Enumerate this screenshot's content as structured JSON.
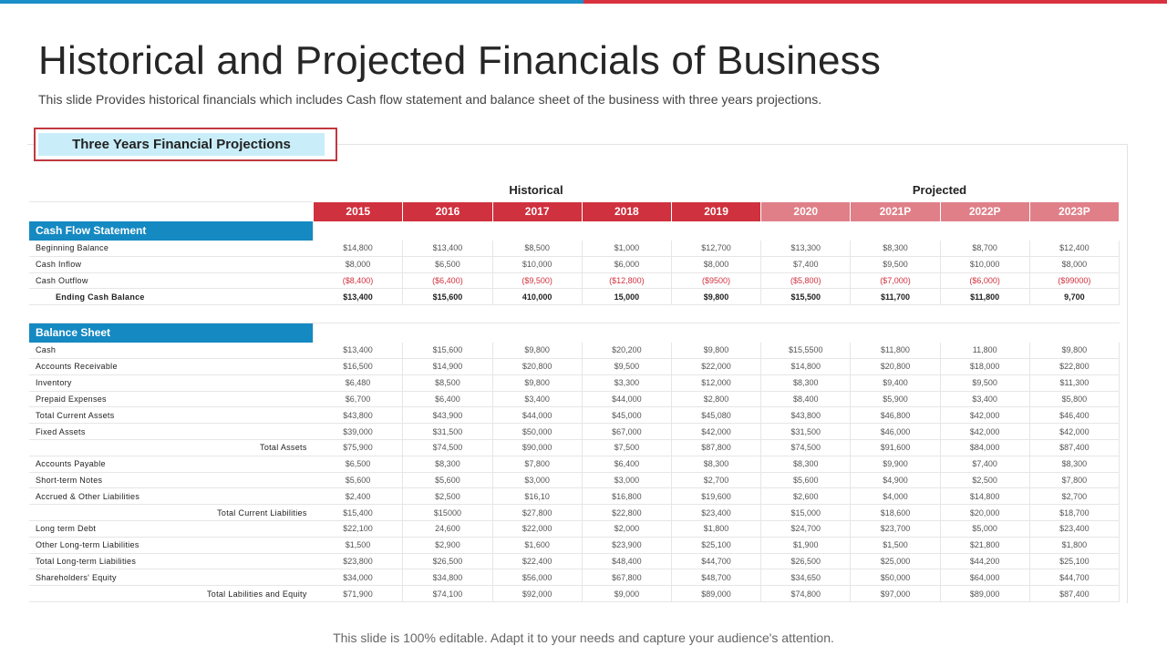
{
  "title": "Historical and Projected Financials of Business",
  "subtitle": "This slide Provides historical financials which includes Cash flow statement and balance sheet of the business with three years projections.",
  "section_tab": "Three Years Financial Projections",
  "groups": {
    "historical": "Historical",
    "projected": "Projected"
  },
  "years": [
    "2015",
    "2016",
    "2017",
    "2018",
    "2019",
    "2020",
    "2021P",
    "2022P",
    "2023P"
  ],
  "cash_flow": {
    "heading": "Cash Flow Statement",
    "rows": [
      {
        "label": "Beginning Balance",
        "values": [
          "$14,800",
          "$13,400",
          "$8,500",
          "$1,000",
          "$12,700",
          "$13,300",
          "$8,300",
          "$8,700",
          "$12,400"
        ]
      },
      {
        "label": "Cash Inflow",
        "values": [
          "$8,000",
          "$6,500",
          "$10,000",
          "$6,000",
          "$8,000",
          "$7,400",
          "$9,500",
          "$10,000",
          "$8,000"
        ]
      },
      {
        "label": "Cash Outflow",
        "values": [
          "($8,400)",
          "($6,400)",
          "($9,500)",
          "($12,800)",
          "($9500)",
          "($5,800)",
          "($7,000)",
          "($6,000)",
          "($99000)"
        ]
      },
      {
        "label": "Ending Cash Balance",
        "values": [
          "$13,400",
          "$15,600",
          "410,000",
          "15,000",
          "$9,800",
          "$15,500",
          "$11,700",
          "$11,800",
          "9,700"
        ]
      }
    ]
  },
  "balance_sheet": {
    "heading": "Balance Sheet",
    "rows": [
      {
        "label": "Cash",
        "values": [
          "$13,400",
          "$15,600",
          "$9,800",
          "$20,200",
          "$9,800",
          "$15,5500",
          "$11,800",
          "11,800",
          "$9,800"
        ]
      },
      {
        "label": "Accounts Receivable",
        "values": [
          "$16,500",
          "$14,900",
          "$20,800",
          "$9,500",
          "$22,000",
          "$14,800",
          "$20,800",
          "$18,000",
          "$22,800"
        ]
      },
      {
        "label": "Inventory",
        "values": [
          "$6,480",
          "$8,500",
          "$9,800",
          "$3,300",
          "$12,000",
          "$8,300",
          "$9,400",
          "$9,500",
          "$11,300"
        ]
      },
      {
        "label": "Prepaid Expenses",
        "values": [
          "$6,700",
          "$6,400",
          "$3,400",
          "$44,000",
          "$2,800",
          "$8,400",
          "$5,900",
          "$3,400",
          "$5,800"
        ]
      },
      {
        "label": "Total Current Assets",
        "values": [
          "$43,800",
          "$43,900",
          "$44,000",
          "$45,000",
          "$45,080",
          "$43,800",
          "$46,800",
          "$42,000",
          "$46,400"
        ]
      },
      {
        "label": "Fixed Assets",
        "values": [
          "$39,000",
          "$31,500",
          "$50,000",
          "$67,000",
          "$42,000",
          "$31,500",
          "$46,000",
          "$42,000",
          "$42,000"
        ]
      },
      {
        "label": "Total Assets",
        "values": [
          "$75,900",
          "$74,500",
          "$90,000",
          "$7,500",
          "$87,800",
          "$74,500",
          "$91,600",
          "$84,000",
          "$87,400"
        ]
      },
      {
        "label": "Accounts Payable",
        "values": [
          "$6,500",
          "$8,300",
          "$7,800",
          "$6,400",
          "$8,300",
          "$8,300",
          "$9,900",
          "$7,400",
          "$8,300"
        ]
      },
      {
        "label": "Short-term Notes",
        "values": [
          "$5,600",
          "$5,600",
          "$3,000",
          "$3,000",
          "$2,700",
          "$5,600",
          "$4,900",
          "$2,500",
          "$7,800"
        ]
      },
      {
        "label": "Accrued & Other Liabilities",
        "values": [
          "$2,400",
          "$2,500",
          "$16,10",
          "$16,800",
          "$19,600",
          "$2,600",
          "$4,000",
          "$14,800",
          "$2,700"
        ]
      },
      {
        "label": "Total Current Liabilities",
        "values": [
          "$15,400",
          "$15000",
          "$27,800",
          "$22,800",
          "$23,400",
          "$15,000",
          "$18,600",
          "$20,000",
          "$18,700"
        ]
      },
      {
        "label": "Long term Debt",
        "values": [
          "$22,100",
          "24,600",
          "$22,000",
          "$2,000",
          "$1,800",
          "$24,700",
          "$23,700",
          "$5,000",
          "$23,400"
        ]
      },
      {
        "label": "Other Long-term Liabilities",
        "values": [
          "$1,500",
          "$2,900",
          "$1,600",
          "$23,900",
          "$25,100",
          "$1,900",
          "$1,500",
          "$21,800",
          "$1,800"
        ]
      },
      {
        "label": "Total Long-term Liabilities",
        "values": [
          "$23,800",
          "$26,500",
          "$22,400",
          "$48,400",
          "$44,700",
          "$26,500",
          "$25,000",
          "$44,200",
          "$25,100"
        ]
      },
      {
        "label": "Shareholders' Equity",
        "values": [
          "$34,000",
          "$34,800",
          "$56,000",
          "$67,800",
          "$48,700",
          "$34,650",
          "$50,000",
          "$64,000",
          "$44,700"
        ]
      },
      {
        "label": "Total Labilities and Equity",
        "values": [
          "$71,900",
          "$74,100",
          "$92,000",
          "$9,000",
          "$89,000",
          "$74,800",
          "$97,000",
          "$89,000",
          "$87,400"
        ]
      }
    ]
  },
  "footer": "This slide is 100% editable. Adapt it to your needs and capture your audience's attention.",
  "colors": {
    "accent_blue": "#1589c2",
    "historical_red": "#d0313e",
    "projected_pink": "#e07f88",
    "tab_fill": "#c9eefa",
    "negative": "#d0313e"
  }
}
